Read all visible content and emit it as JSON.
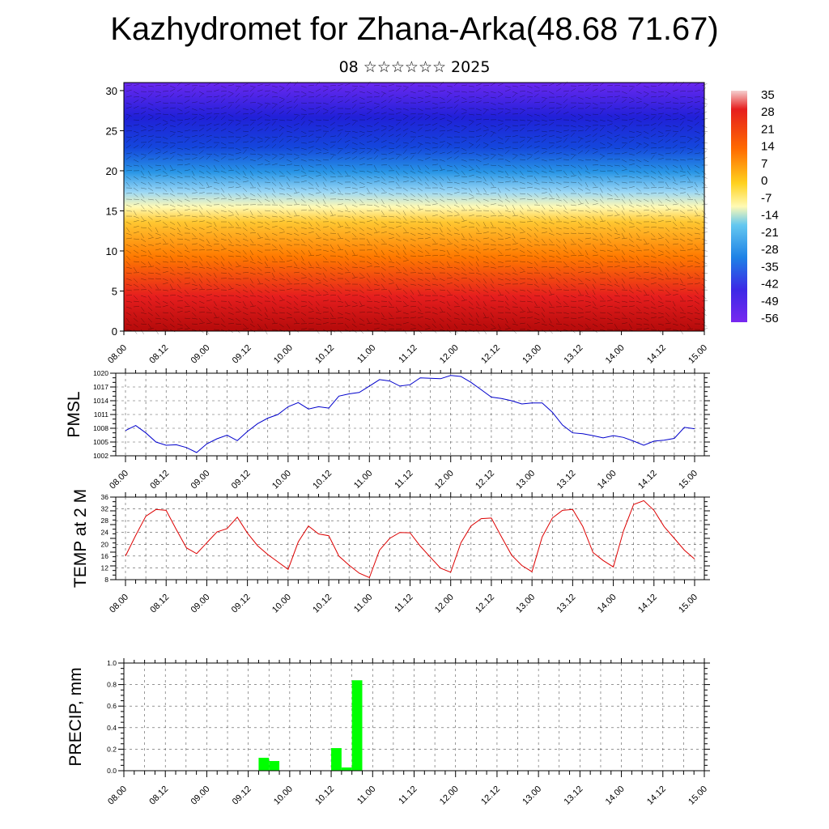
{
  "title": "Kazhydromet for Zhana-Arka(48.68 71.67)",
  "subtitle": "08 ☆☆☆☆☆☆ 2025",
  "chart_data": [
    {
      "type": "heatmap",
      "name": "cross-section",
      "y_ticks": [
        "0",
        "5",
        "10",
        "15",
        "20",
        "25",
        "30"
      ],
      "ylim": [
        0,
        31
      ],
      "x_ticks": [
        "08.00",
        "08.12",
        "09.00",
        "09.12",
        "10.00",
        "10.12",
        "11.00",
        "11.12",
        "12.00",
        "12.12",
        "13.00",
        "13.12",
        "14.00",
        "14.12",
        "15.00"
      ],
      "colorbar_labels": [
        "35",
        "28",
        "21",
        "14",
        "7",
        "0",
        "-7",
        "-14",
        "-21",
        "-28",
        "-35",
        "-42",
        "-49",
        "-56"
      ],
      "colors": [
        "#f0f0f0",
        "#e61e1e",
        "#ff7a00",
        "#ffd21e",
        "#fffab4",
        "#64c8f0",
        "#1e64e6",
        "#5a1ef0"
      ]
    },
    {
      "type": "line",
      "ylabel": "PMSL",
      "y_ticks": [
        "1020",
        "1017",
        "1014",
        "1011",
        "1008",
        "1005",
        "1002"
      ],
      "ylim": [
        1002,
        1020
      ],
      "x_ticks": [
        "08.00",
        "08.12",
        "09.00",
        "09.12",
        "10.00",
        "10.12",
        "11.00",
        "11.12",
        "12.00",
        "12.12",
        "13.00",
        "13.12",
        "14.00",
        "14.12",
        "15.00"
      ],
      "color": "#0000cc",
      "values": [
        1007.5,
        1008.6,
        1007.0,
        1005.0,
        1004.3,
        1004.4,
        1003.8,
        1002.7,
        1004.6,
        1005.7,
        1006.5,
        1005.3,
        1007.3,
        1009.0,
        1010.2,
        1011.0,
        1012.7,
        1013.6,
        1012.2,
        1012.7,
        1012.4,
        1015.0,
        1015.5,
        1015.8,
        1017.2,
        1018.6,
        1018.3,
        1017.2,
        1017.5,
        1019.0,
        1018.9,
        1018.8,
        1019.5,
        1019.3,
        1018.0,
        1016.4,
        1014.8,
        1014.5,
        1014.0,
        1013.3,
        1013.5,
        1013.5,
        1011.5,
        1008.7,
        1007.0,
        1006.8,
        1006.4,
        1005.9,
        1006.4,
        1006.0,
        1005.2,
        1004.3,
        1005.2,
        1005.4,
        1005.8,
        1008.2,
        1007.9
      ]
    },
    {
      "type": "line",
      "ylabel": "TEMP at 2 M",
      "y_ticks": [
        "36",
        "32",
        "28",
        "24",
        "20",
        "16",
        "12",
        "8"
      ],
      "ylim": [
        8,
        36
      ],
      "x_ticks": [
        "08.00",
        "08.12",
        "09.00",
        "09.12",
        "10.00",
        "10.12",
        "11.00",
        "11.12",
        "12.00",
        "12.12",
        "13.00",
        "13.12",
        "14.00",
        "14.12",
        "15.00"
      ],
      "color": "#dd0000",
      "values": [
        16,
        23,
        29.5,
        31.8,
        31.5,
        25,
        18.8,
        16.8,
        20.5,
        24.2,
        25.3,
        29.2,
        23.8,
        19.5,
        16.5,
        14.0,
        11.5,
        20.8,
        26.2,
        23.5,
        22.9,
        16.0,
        12.9,
        10.2,
        8.7,
        18.0,
        22.0,
        24.0,
        23.9,
        19.4,
        15.6,
        11.9,
        10.5,
        20.5,
        26.2,
        28.7,
        28.9,
        22.5,
        16.3,
        12.8,
        10.7,
        22.5,
        28.9,
        31.5,
        31.8,
        26.0,
        17.2,
        14.5,
        12.3,
        24.5,
        33.5,
        34.8,
        31.5,
        26.0,
        22.0,
        18.0,
        15.0
      ]
    },
    {
      "type": "bar",
      "ylabel": "PRECIP, mm",
      "y_ticks": [
        "1.0",
        "0.8",
        "0.6",
        "0.4",
        "0.2",
        "0.0"
      ],
      "ylim": [
        0,
        1
      ],
      "x_ticks": [
        "08.00",
        "08.12",
        "09.00",
        "09.12",
        "10.00",
        "10.12",
        "11.00",
        "11.12",
        "12.00",
        "12.12",
        "13.00",
        "13.12",
        "14.00",
        "14.12",
        "15.00"
      ],
      "color": "#00ff00",
      "bars": [
        {
          "step": 13,
          "value": 0.12
        },
        {
          "step": 14,
          "value": 0.09
        },
        {
          "step": 20,
          "value": 0.21
        },
        {
          "step": 21,
          "value": 0.03
        },
        {
          "step": 22,
          "value": 0.84
        }
      ]
    }
  ]
}
